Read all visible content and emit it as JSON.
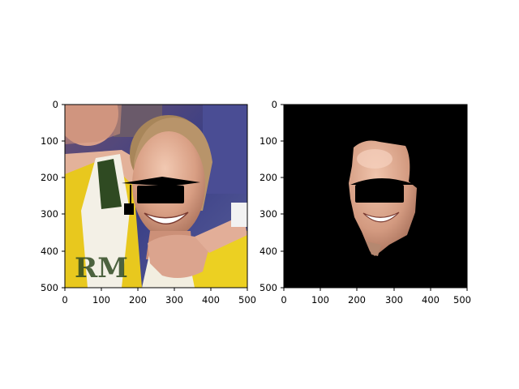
{
  "figure": {
    "panels": [
      {
        "name": "original-photo",
        "content": "photo",
        "x_ticks": [
          "0",
          "100",
          "200",
          "300",
          "400",
          "500"
        ],
        "y_ticks": [
          "0",
          "100",
          "200",
          "300",
          "400",
          "500"
        ],
        "xlim": [
          0,
          500
        ],
        "ylim": [
          0,
          500
        ],
        "y_inverted": true
      },
      {
        "name": "face-mask",
        "content": "segmented-face-on-black",
        "x_ticks": [
          "0",
          "100",
          "200",
          "300",
          "400",
          "500"
        ],
        "y_ticks": [
          "0",
          "100",
          "200",
          "300",
          "400",
          "500"
        ],
        "xlim": [
          0,
          500
        ],
        "ylim": [
          0,
          500
        ],
        "y_inverted": true
      }
    ],
    "colors": {
      "jersey_yellow": "#e8c81e",
      "jersey_green": "#2f4a22",
      "skin": "#d9a48a",
      "hair": "#a8865a",
      "background_blue": "#3a3f86",
      "redaction": "#000000",
      "mask_background": "#000000"
    }
  }
}
